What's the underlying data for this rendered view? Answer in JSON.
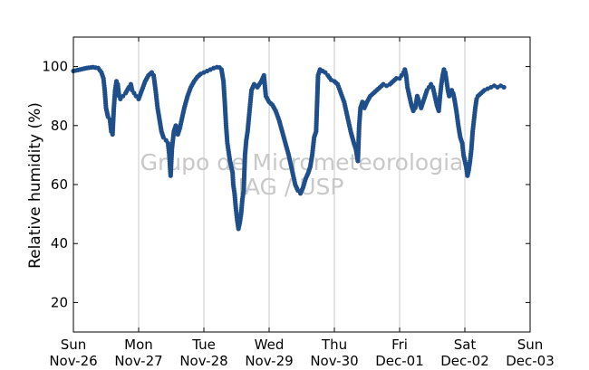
{
  "chart_data": {
    "type": "scatter",
    "ylabel": "Relative humidity (%)",
    "xlabel": "",
    "ylim": [
      10,
      110
    ],
    "yticks": [
      20,
      40,
      60,
      80,
      100
    ],
    "grid": "vertical lines at day boundaries",
    "marker_color": "#1f4f8b",
    "grid_color": "#c8c8c8",
    "x_tick_labels": [
      {
        "day": "Sun",
        "date": "Nov-26"
      },
      {
        "day": "Mon",
        "date": "Nov-27"
      },
      {
        "day": "Tue",
        "date": "Nov-28"
      },
      {
        "day": "Wed",
        "date": "Nov-29"
      },
      {
        "day": "Thu",
        "date": "Nov-30"
      },
      {
        "day": "Fri",
        "date": "Dec-01"
      },
      {
        "day": "Sat",
        "date": "Dec-02"
      },
      {
        "day": "Sun",
        "date": "Dec-03"
      }
    ],
    "watermark": [
      "Grupo de Micrometeorologia",
      "IAG / USP"
    ],
    "series": [
      {
        "x_unit": "days since Nov-26 00:00",
        "points": [
          [
            0.0,
            98.5
          ],
          [
            0.1,
            99.0
          ],
          [
            0.2,
            99.5
          ],
          [
            0.3,
            99.8
          ],
          [
            0.38,
            99.5
          ],
          [
            0.43,
            98
          ],
          [
            0.46,
            96
          ],
          [
            0.48,
            92
          ],
          [
            0.5,
            86
          ],
          [
            0.53,
            83
          ],
          [
            0.56,
            82
          ],
          [
            0.58,
            78
          ],
          [
            0.6,
            77
          ],
          [
            0.62,
            86
          ],
          [
            0.64,
            92
          ],
          [
            0.66,
            95
          ],
          [
            0.68,
            94
          ],
          [
            0.7,
            90
          ],
          [
            0.72,
            89
          ],
          [
            0.76,
            90
          ],
          [
            0.8,
            91
          ],
          [
            0.85,
            93
          ],
          [
            0.88,
            94
          ],
          [
            0.9,
            92
          ],
          [
            0.93,
            91
          ],
          [
            0.96,
            90
          ],
          [
            1.0,
            89
          ],
          [
            1.05,
            92
          ],
          [
            1.1,
            95
          ],
          [
            1.15,
            97
          ],
          [
            1.2,
            98
          ],
          [
            1.23,
            97
          ],
          [
            1.26,
            92
          ],
          [
            1.29,
            86
          ],
          [
            1.32,
            82
          ],
          [
            1.35,
            78
          ],
          [
            1.38,
            76
          ],
          [
            1.42,
            75
          ],
          [
            1.45,
            74
          ],
          [
            1.47,
            70
          ],
          [
            1.49,
            63
          ],
          [
            1.51,
            72
          ],
          [
            1.54,
            78
          ],
          [
            1.57,
            80
          ],
          [
            1.6,
            77
          ],
          [
            1.63,
            79
          ],
          [
            1.66,
            82
          ],
          [
            1.7,
            86
          ],
          [
            1.75,
            90
          ],
          [
            1.8,
            93
          ],
          [
            1.85,
            95
          ],
          [
            1.9,
            96.5
          ],
          [
            1.95,
            97.5
          ],
          [
            2.0,
            98
          ],
          [
            2.05,
            98.5
          ],
          [
            2.1,
            99
          ],
          [
            2.15,
            99.5
          ],
          [
            2.2,
            99.8
          ],
          [
            2.24,
            99.7
          ],
          [
            2.27,
            99
          ],
          [
            2.3,
            95
          ],
          [
            2.32,
            88
          ],
          [
            2.34,
            80
          ],
          [
            2.36,
            74
          ],
          [
            2.38,
            71
          ],
          [
            2.4,
            68
          ],
          [
            2.42,
            66
          ],
          [
            2.44,
            64
          ],
          [
            2.45,
            60
          ],
          [
            2.47,
            57
          ],
          [
            2.49,
            52
          ],
          [
            2.51,
            48
          ],
          [
            2.53,
            45
          ],
          [
            2.55,
            47
          ],
          [
            2.57,
            50
          ],
          [
            2.59,
            55
          ],
          [
            2.61,
            58
          ],
          [
            2.63,
            70
          ],
          [
            2.65,
            75
          ],
          [
            2.67,
            78
          ],
          [
            2.7,
            85
          ],
          [
            2.73,
            92
          ],
          [
            2.77,
            94
          ],
          [
            2.82,
            93
          ],
          [
            2.88,
            95
          ],
          [
            2.92,
            97
          ],
          [
            2.95,
            90
          ],
          [
            3.0,
            88
          ],
          [
            3.05,
            87
          ],
          [
            3.1,
            85
          ],
          [
            3.15,
            82
          ],
          [
            3.2,
            78
          ],
          [
            3.25,
            74
          ],
          [
            3.3,
            70
          ],
          [
            3.35,
            65
          ],
          [
            3.4,
            60
          ],
          [
            3.44,
            58
          ],
          [
            3.48,
            57
          ],
          [
            3.52,
            59
          ],
          [
            3.56,
            62
          ],
          [
            3.6,
            64
          ],
          [
            3.63,
            66
          ],
          [
            3.66,
            70
          ],
          [
            3.69,
            76
          ],
          [
            3.72,
            78
          ],
          [
            3.75,
            97
          ],
          [
            3.78,
            99
          ],
          [
            3.82,
            98.5
          ],
          [
            3.86,
            98
          ],
          [
            3.9,
            97
          ],
          [
            3.95,
            95.5
          ],
          [
            4.0,
            95
          ],
          [
            4.05,
            94
          ],
          [
            4.1,
            91
          ],
          [
            4.15,
            88
          ],
          [
            4.2,
            83
          ],
          [
            4.25,
            78
          ],
          [
            4.3,
            74
          ],
          [
            4.33,
            72
          ],
          [
            4.36,
            68
          ],
          [
            4.38,
            80
          ],
          [
            4.4,
            86
          ],
          [
            4.43,
            88
          ],
          [
            4.46,
            86
          ],
          [
            4.5,
            88
          ],
          [
            4.55,
            90
          ],
          [
            4.6,
            91
          ],
          [
            4.65,
            92
          ],
          [
            4.7,
            93
          ],
          [
            4.75,
            94
          ],
          [
            4.8,
            93.5
          ],
          [
            4.85,
            94
          ],
          [
            4.9,
            95
          ],
          [
            4.95,
            96
          ],
          [
            5.0,
            96
          ],
          [
            5.03,
            97
          ],
          [
            5.06,
            98
          ],
          [
            5.08,
            99
          ],
          [
            5.1,
            97
          ],
          [
            5.12,
            93
          ],
          [
            5.15,
            90
          ],
          [
            5.18,
            87
          ],
          [
            5.21,
            85
          ],
          [
            5.24,
            86
          ],
          [
            5.27,
            90
          ],
          [
            5.3,
            88
          ],
          [
            5.33,
            86
          ],
          [
            5.36,
            88
          ],
          [
            5.39,
            90
          ],
          [
            5.42,
            92
          ],
          [
            5.45,
            93
          ],
          [
            5.48,
            94
          ],
          [
            5.51,
            93
          ],
          [
            5.54,
            90
          ],
          [
            5.57,
            87
          ],
          [
            5.6,
            85
          ],
          [
            5.62,
            90
          ],
          [
            5.64,
            94
          ],
          [
            5.66,
            97
          ],
          [
            5.68,
            99
          ],
          [
            5.7,
            98
          ],
          [
            5.72,
            95
          ],
          [
            5.74,
            92
          ],
          [
            5.76,
            90
          ],
          [
            5.78,
            91
          ],
          [
            5.8,
            92
          ],
          [
            5.82,
            91
          ],
          [
            5.84,
            89
          ],
          [
            5.87,
            85
          ],
          [
            5.9,
            80
          ],
          [
            5.93,
            76
          ],
          [
            5.96,
            74
          ],
          [
            5.98,
            70
          ],
          [
            6.0,
            68
          ],
          [
            6.02,
            66
          ],
          [
            6.04,
            63
          ],
          [
            6.06,
            65
          ],
          [
            6.08,
            68
          ],
          [
            6.1,
            72
          ],
          [
            6.12,
            78
          ],
          [
            6.14,
            82
          ],
          [
            6.16,
            86
          ],
          [
            6.18,
            89
          ],
          [
            6.2,
            90
          ],
          [
            6.25,
            91
          ],
          [
            6.3,
            92
          ],
          [
            6.35,
            92.5
          ],
          [
            6.4,
            93
          ],
          [
            6.45,
            93.5
          ],
          [
            6.5,
            93
          ],
          [
            6.55,
            93.5
          ],
          [
            6.6,
            93
          ]
        ]
      }
    ]
  }
}
